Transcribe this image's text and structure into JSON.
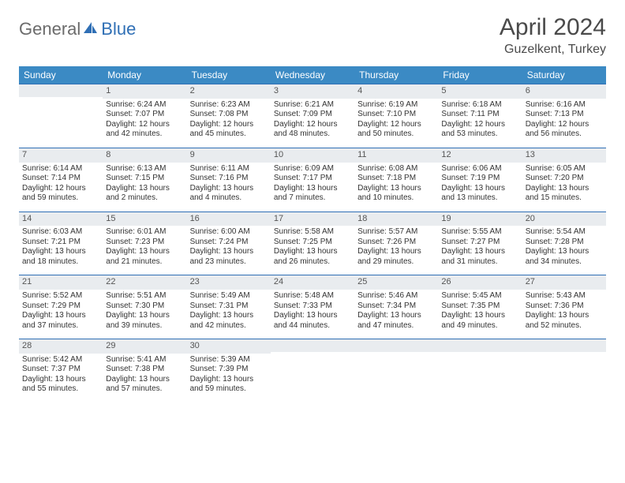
{
  "logo": {
    "text1": "General",
    "text2": "Blue"
  },
  "title": "April 2024",
  "location": "Guzelkent, Turkey",
  "colors": {
    "header_bg": "#3b8ac4",
    "header_text": "#ffffff",
    "rule": "#2f6fb5",
    "daynum_bg": "#e9ecef",
    "body_text": "#333333",
    "logo_gray": "#6b6b6b",
    "logo_blue": "#2f6fb5"
  },
  "weekdays": [
    "Sunday",
    "Monday",
    "Tuesday",
    "Wednesday",
    "Thursday",
    "Friday",
    "Saturday"
  ],
  "weeks": [
    [
      {
        "n": "",
        "sr": "",
        "ss": "",
        "dl": ""
      },
      {
        "n": "1",
        "sr": "Sunrise: 6:24 AM",
        "ss": "Sunset: 7:07 PM",
        "dl": "Daylight: 12 hours and 42 minutes."
      },
      {
        "n": "2",
        "sr": "Sunrise: 6:23 AM",
        "ss": "Sunset: 7:08 PM",
        "dl": "Daylight: 12 hours and 45 minutes."
      },
      {
        "n": "3",
        "sr": "Sunrise: 6:21 AM",
        "ss": "Sunset: 7:09 PM",
        "dl": "Daylight: 12 hours and 48 minutes."
      },
      {
        "n": "4",
        "sr": "Sunrise: 6:19 AM",
        "ss": "Sunset: 7:10 PM",
        "dl": "Daylight: 12 hours and 50 minutes."
      },
      {
        "n": "5",
        "sr": "Sunrise: 6:18 AM",
        "ss": "Sunset: 7:11 PM",
        "dl": "Daylight: 12 hours and 53 minutes."
      },
      {
        "n": "6",
        "sr": "Sunrise: 6:16 AM",
        "ss": "Sunset: 7:13 PM",
        "dl": "Daylight: 12 hours and 56 minutes."
      }
    ],
    [
      {
        "n": "7",
        "sr": "Sunrise: 6:14 AM",
        "ss": "Sunset: 7:14 PM",
        "dl": "Daylight: 12 hours and 59 minutes."
      },
      {
        "n": "8",
        "sr": "Sunrise: 6:13 AM",
        "ss": "Sunset: 7:15 PM",
        "dl": "Daylight: 13 hours and 2 minutes."
      },
      {
        "n": "9",
        "sr": "Sunrise: 6:11 AM",
        "ss": "Sunset: 7:16 PM",
        "dl": "Daylight: 13 hours and 4 minutes."
      },
      {
        "n": "10",
        "sr": "Sunrise: 6:09 AM",
        "ss": "Sunset: 7:17 PM",
        "dl": "Daylight: 13 hours and 7 minutes."
      },
      {
        "n": "11",
        "sr": "Sunrise: 6:08 AM",
        "ss": "Sunset: 7:18 PM",
        "dl": "Daylight: 13 hours and 10 minutes."
      },
      {
        "n": "12",
        "sr": "Sunrise: 6:06 AM",
        "ss": "Sunset: 7:19 PM",
        "dl": "Daylight: 13 hours and 13 minutes."
      },
      {
        "n": "13",
        "sr": "Sunrise: 6:05 AM",
        "ss": "Sunset: 7:20 PM",
        "dl": "Daylight: 13 hours and 15 minutes."
      }
    ],
    [
      {
        "n": "14",
        "sr": "Sunrise: 6:03 AM",
        "ss": "Sunset: 7:21 PM",
        "dl": "Daylight: 13 hours and 18 minutes."
      },
      {
        "n": "15",
        "sr": "Sunrise: 6:01 AM",
        "ss": "Sunset: 7:23 PM",
        "dl": "Daylight: 13 hours and 21 minutes."
      },
      {
        "n": "16",
        "sr": "Sunrise: 6:00 AM",
        "ss": "Sunset: 7:24 PM",
        "dl": "Daylight: 13 hours and 23 minutes."
      },
      {
        "n": "17",
        "sr": "Sunrise: 5:58 AM",
        "ss": "Sunset: 7:25 PM",
        "dl": "Daylight: 13 hours and 26 minutes."
      },
      {
        "n": "18",
        "sr": "Sunrise: 5:57 AM",
        "ss": "Sunset: 7:26 PM",
        "dl": "Daylight: 13 hours and 29 minutes."
      },
      {
        "n": "19",
        "sr": "Sunrise: 5:55 AM",
        "ss": "Sunset: 7:27 PM",
        "dl": "Daylight: 13 hours and 31 minutes."
      },
      {
        "n": "20",
        "sr": "Sunrise: 5:54 AM",
        "ss": "Sunset: 7:28 PM",
        "dl": "Daylight: 13 hours and 34 minutes."
      }
    ],
    [
      {
        "n": "21",
        "sr": "Sunrise: 5:52 AM",
        "ss": "Sunset: 7:29 PM",
        "dl": "Daylight: 13 hours and 37 minutes."
      },
      {
        "n": "22",
        "sr": "Sunrise: 5:51 AM",
        "ss": "Sunset: 7:30 PM",
        "dl": "Daylight: 13 hours and 39 minutes."
      },
      {
        "n": "23",
        "sr": "Sunrise: 5:49 AM",
        "ss": "Sunset: 7:31 PM",
        "dl": "Daylight: 13 hours and 42 minutes."
      },
      {
        "n": "24",
        "sr": "Sunrise: 5:48 AM",
        "ss": "Sunset: 7:33 PM",
        "dl": "Daylight: 13 hours and 44 minutes."
      },
      {
        "n": "25",
        "sr": "Sunrise: 5:46 AM",
        "ss": "Sunset: 7:34 PM",
        "dl": "Daylight: 13 hours and 47 minutes."
      },
      {
        "n": "26",
        "sr": "Sunrise: 5:45 AM",
        "ss": "Sunset: 7:35 PM",
        "dl": "Daylight: 13 hours and 49 minutes."
      },
      {
        "n": "27",
        "sr": "Sunrise: 5:43 AM",
        "ss": "Sunset: 7:36 PM",
        "dl": "Daylight: 13 hours and 52 minutes."
      }
    ],
    [
      {
        "n": "28",
        "sr": "Sunrise: 5:42 AM",
        "ss": "Sunset: 7:37 PM",
        "dl": "Daylight: 13 hours and 55 minutes."
      },
      {
        "n": "29",
        "sr": "Sunrise: 5:41 AM",
        "ss": "Sunset: 7:38 PM",
        "dl": "Daylight: 13 hours and 57 minutes."
      },
      {
        "n": "30",
        "sr": "Sunrise: 5:39 AM",
        "ss": "Sunset: 7:39 PM",
        "dl": "Daylight: 13 hours and 59 minutes."
      },
      {
        "n": "",
        "sr": "",
        "ss": "",
        "dl": ""
      },
      {
        "n": "",
        "sr": "",
        "ss": "",
        "dl": ""
      },
      {
        "n": "",
        "sr": "",
        "ss": "",
        "dl": ""
      },
      {
        "n": "",
        "sr": "",
        "ss": "",
        "dl": ""
      }
    ]
  ]
}
